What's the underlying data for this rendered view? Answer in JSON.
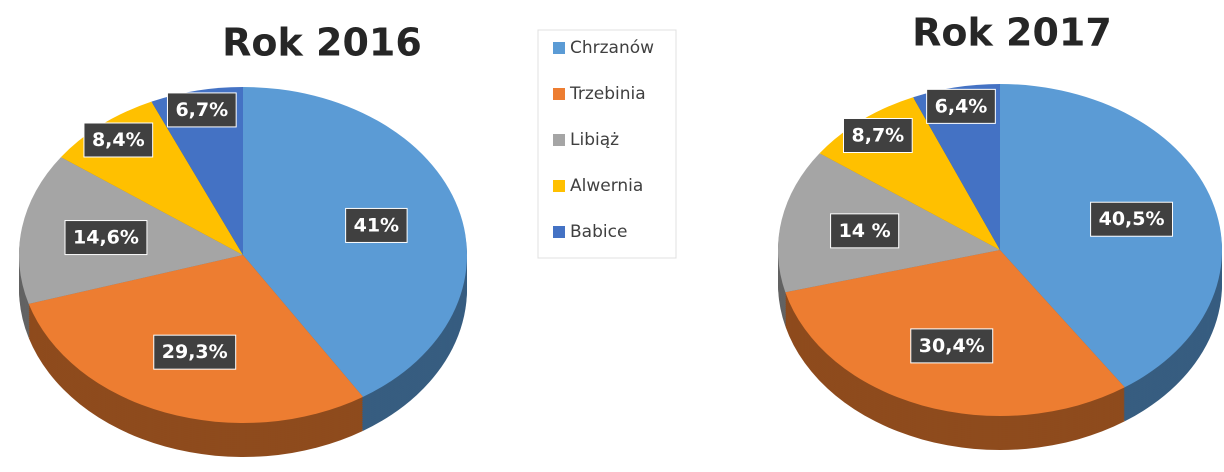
{
  "chart_data": [
    {
      "type": "pie",
      "title": "Rok 2016",
      "categories": [
        "Chrzanów",
        "Trzebinia",
        "Libiąż",
        "Alwernia",
        "Babice"
      ],
      "values": [
        41,
        29.3,
        14.6,
        8.4,
        6.7
      ],
      "value_labels": [
        "41%",
        "29,3%",
        "14,6%",
        "8,4%",
        "6,7%"
      ],
      "colors": [
        "#5b9bd5",
        "#ed7d31",
        "#a5a5a5",
        "#ffc000",
        "#4472c4"
      ],
      "legend": "right"
    },
    {
      "type": "pie",
      "title": "Rok 2017",
      "categories": [
        "Chrzanów",
        "Trzebinia",
        "Libiąż",
        "Alwernia",
        "Babice"
      ],
      "values": [
        40.5,
        30.4,
        14,
        8.7,
        6.4
      ],
      "value_labels": [
        "40,5%",
        "30,4%",
        "14 %",
        "8,7%",
        "6,4%"
      ],
      "colors": [
        "#5b9bd5",
        "#ed7d31",
        "#a5a5a5",
        "#ffc000",
        "#4472c4"
      ]
    }
  ]
}
